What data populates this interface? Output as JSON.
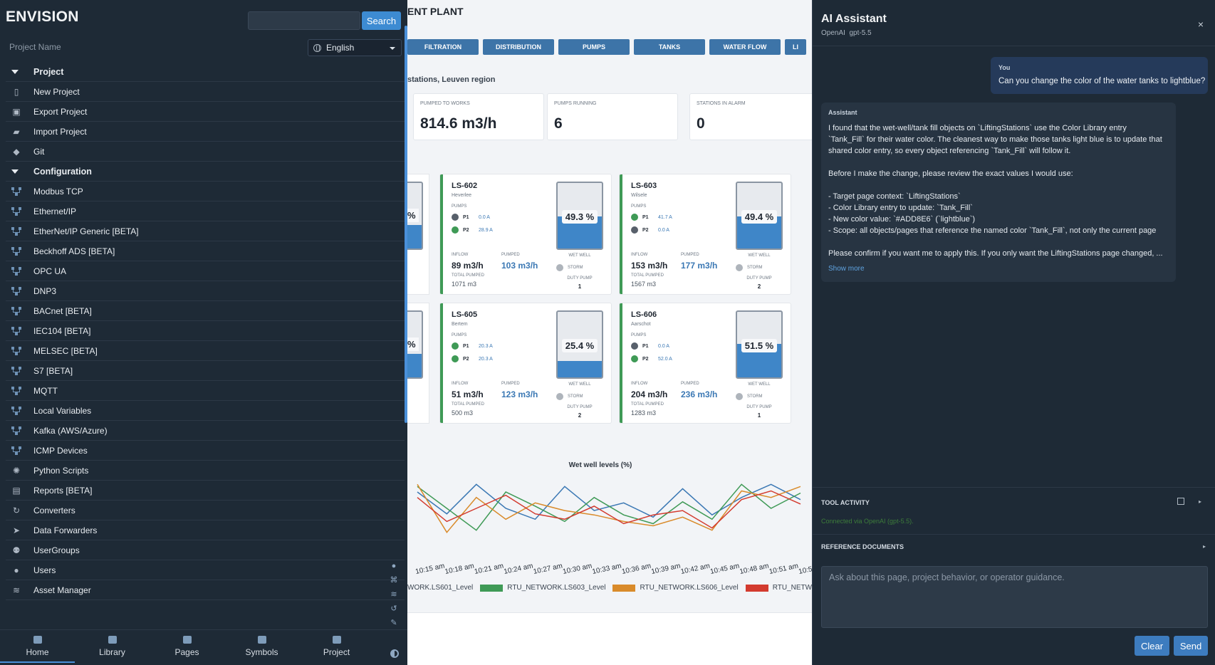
{
  "sidebar": {
    "brand": "ENVISION",
    "search_button": "Search",
    "project_name_placeholder": "Project Name",
    "language": "English",
    "menu": [
      {
        "label": "Project",
        "type": "section",
        "icon": "caret-down-icon"
      },
      {
        "label": "New Project",
        "type": "item",
        "icon": "file-icon"
      },
      {
        "label": "Export Project",
        "type": "item",
        "icon": "save-icon"
      },
      {
        "label": "Import Project",
        "type": "item",
        "icon": "folder-open-icon"
      },
      {
        "label": "Git",
        "type": "item",
        "icon": "git-icon"
      },
      {
        "label": "Configuration",
        "type": "section",
        "icon": "caret-down-icon"
      },
      {
        "label": "Modbus TCP",
        "type": "item",
        "icon": "network-icon"
      },
      {
        "label": "Ethernet/IP",
        "type": "item",
        "icon": "network-icon"
      },
      {
        "label": "EtherNet/IP Generic [BETA]",
        "type": "item",
        "icon": "network-icon"
      },
      {
        "label": "Beckhoff ADS [BETA]",
        "type": "item",
        "icon": "network-icon"
      },
      {
        "label": "OPC UA",
        "type": "item",
        "icon": "network-icon"
      },
      {
        "label": "DNP3",
        "type": "item",
        "icon": "network-icon"
      },
      {
        "label": "BACnet [BETA]",
        "type": "item",
        "icon": "network-icon"
      },
      {
        "label": "IEC104 [BETA]",
        "type": "item",
        "icon": "network-icon"
      },
      {
        "label": "MELSEC [BETA]",
        "type": "item",
        "icon": "network-icon"
      },
      {
        "label": "S7 [BETA]",
        "type": "item",
        "icon": "network-icon"
      },
      {
        "label": "MQTT",
        "type": "item",
        "icon": "network-icon"
      },
      {
        "label": "Local Variables",
        "type": "item",
        "icon": "network-icon"
      },
      {
        "label": "Kafka (AWS/Azure)",
        "type": "item",
        "icon": "network-icon"
      },
      {
        "label": "ICMP Devices",
        "type": "item",
        "icon": "network-icon"
      },
      {
        "label": "Python Scripts",
        "type": "item",
        "icon": "python-icon"
      },
      {
        "label": "Reports [BETA]",
        "type": "item",
        "icon": "report-icon"
      },
      {
        "label": "Converters",
        "type": "item",
        "icon": "converter-icon"
      },
      {
        "label": "Data Forwarders",
        "type": "item",
        "icon": "send-icon"
      },
      {
        "label": "UserGroups",
        "type": "item",
        "icon": "users-icon"
      },
      {
        "label": "Users",
        "type": "item",
        "icon": "user-icon"
      },
      {
        "label": "Asset Manager",
        "type": "item",
        "icon": "layers-icon"
      }
    ],
    "bottom_nav": [
      {
        "label": "Home",
        "icon": "home-icon",
        "active": true
      },
      {
        "label": "Library",
        "icon": "book-icon",
        "active": false
      },
      {
        "label": "Pages",
        "icon": "page-icon",
        "active": false
      },
      {
        "label": "Symbols",
        "icon": "grid-icon",
        "active": false
      },
      {
        "label": "Project",
        "icon": "folder-icon",
        "active": false
      }
    ]
  },
  "dashboard": {
    "title": "ENT PLANT",
    "tabs": [
      "FILTRATION",
      "DISTRIBUTION",
      "PUMPS",
      "TANKS",
      "WATER FLOW",
      "LI"
    ],
    "subtitle": "stations, Leuven region",
    "kpis": [
      {
        "label": "PUMPED TO WORKS",
        "value": "814.6 m3/h"
      },
      {
        "label": "PUMPS RUNNING",
        "value": "6"
      },
      {
        "label": "STATIONS IN ALARM",
        "value": "0"
      }
    ],
    "partial_pct": "%",
    "labels": {
      "pumps": "PUMPS",
      "inflow": "INFLOW",
      "pumped": "PUMPED",
      "total_pumped": "TOTAL PUMPED",
      "wet_well": "WET WELL",
      "storm": "STORM",
      "duty_pump": "DUTY PUMP"
    },
    "stations": [
      {
        "id": "LS-602",
        "location": "Heverlee",
        "p1": "0.0 A",
        "p2": "28.9 A",
        "p1_running": false,
        "p2_running": true,
        "inflow": "89 m3/h",
        "pumped": "103 m3/h",
        "total": "1071 m3",
        "level": 49.3,
        "level_label": "49.3 %",
        "duty": "1"
      },
      {
        "id": "LS-603",
        "location": "Wilsele",
        "p1": "41.7 A",
        "p2": "0.0 A",
        "p1_running": true,
        "p2_running": false,
        "inflow": "153 m3/h",
        "pumped": "177 m3/h",
        "total": "1567 m3",
        "level": 49.4,
        "level_label": "49.4 %",
        "duty": "2"
      },
      {
        "id": "LS-605",
        "location": "Bertem",
        "p1": "20.3 A",
        "p2": "20.3 A",
        "p1_running": true,
        "p2_running": true,
        "inflow": "51 m3/h",
        "pumped": "123 m3/h",
        "total": "500 m3",
        "level": 25.4,
        "level_label": "25.4 %",
        "duty": "2"
      },
      {
        "id": "LS-606",
        "location": "Aarschot",
        "p1": "0.0 A",
        "p2": "52.0 A",
        "p1_running": false,
        "p2_running": true,
        "inflow": "204 m3/h",
        "pumped": "236 m3/h",
        "total": "1283 m3",
        "level": 51.5,
        "level_label": "51.5 %",
        "duty": "1"
      }
    ],
    "colors": {
      "running": "#3f9a56",
      "stopped": "#58606b",
      "tank_fill": "#3f86c8",
      "card_border": "#3f9a56"
    }
  },
  "chart_data": {
    "type": "line",
    "title": "Wet well levels (%)",
    "x": [
      "10:15 am",
      "10:18 am",
      "10:21 am",
      "10:24 am",
      "10:27 am",
      "10:30 am",
      "10:33 am",
      "10:36 am",
      "10:39 am",
      "10:42 am",
      "10:45 am",
      "10:48 am",
      "10:51 am",
      "10:54"
    ],
    "series": [
      {
        "name": "WORK.LS601_Level",
        "color": "#3b78b4",
        "values": [
          65,
          45,
          72,
          50,
          40,
          70,
          48,
          55,
          42,
          68,
          44,
          60,
          72,
          58
        ]
      },
      {
        "name": "RTU_NETWORK.LS603_Level",
        "color": "#3f9a56",
        "values": [
          70,
          50,
          30,
          65,
          52,
          38,
          60,
          44,
          36,
          56,
          40,
          72,
          50,
          64
        ]
      },
      {
        "name": "RTU_NETWORK.LS606_Level",
        "color": "#d98b2b",
        "values": [
          72,
          28,
          60,
          40,
          55,
          48,
          44,
          38,
          34,
          42,
          30,
          66,
          60,
          70
        ]
      },
      {
        "name": "RTU_NETWORK.L",
        "color": "#d33b2f",
        "values": [
          60,
          38,
          50,
          62,
          45,
          40,
          52,
          36,
          44,
          48,
          32,
          58,
          66,
          54
        ]
      }
    ]
  },
  "assistant": {
    "title": "AI Assistant",
    "provider": "OpenAI",
    "model": "gpt-5.5",
    "user_label": "You",
    "user_message": "Can you change the color of the water tanks to lightblue?",
    "assistant_label": "Assistant",
    "assistant_lines": [
      "I found that the wet-well/tank fill objects on `LiftingStations` use the Color Library entry",
      "`Tank_Fill` for their water color. The cleanest way to make those tanks light blue is to update that",
      "shared color entry, so every object referencing `Tank_Fill` will follow it.",
      "",
      "Before I make the change, please review the exact values I would use:",
      "",
      "- Target page context: `LiftingStations`",
      "- Color Library entry to update: `Tank_Fill`",
      "- New color value: `#ADD8E6` (`lightblue`)",
      "- Scope: all objects/pages that reference the named color `Tank_Fill`, not only the current page",
      "",
      "Please confirm if you want me to apply this. If you only want the LiftingStations page changed, ..."
    ],
    "show_more": "Show more",
    "tool_activity_title": "TOOL ACTIVITY",
    "tool_activity_status": "Connected via OpenAI (gpt-5.5).",
    "reference_docs_title": "REFERENCE DOCUMENTS",
    "input_placeholder": "Ask about this page, project behavior, or operator guidance.",
    "clear_button": "Clear",
    "send_button": "Send",
    "close_glyph": "×"
  }
}
